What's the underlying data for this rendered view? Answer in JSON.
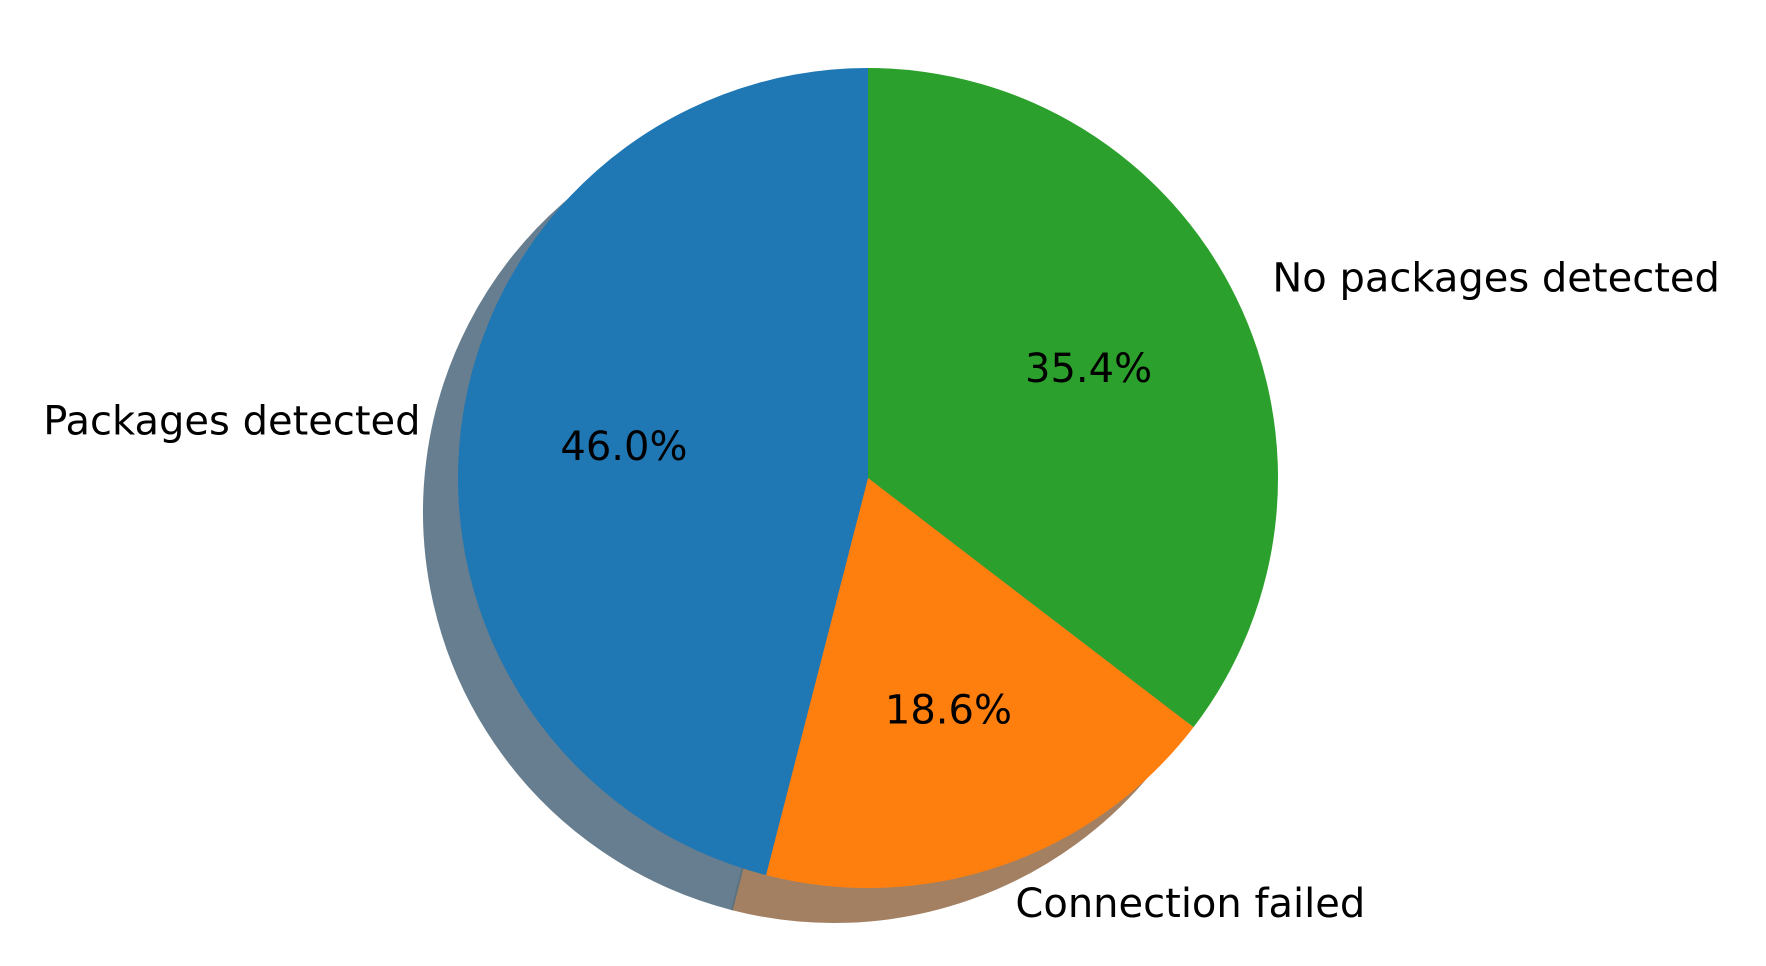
{
  "chart_data": {
    "type": "pie",
    "title": "",
    "shadow": true,
    "start_angle_deg": 90,
    "direction": "clockwise",
    "slices": [
      {
        "label": "No packages detected",
        "percent": 35.4,
        "pct_text": "35.4%",
        "color": "#2ca02c"
      },
      {
        "label": "Connection failed",
        "percent": 18.6,
        "pct_text": "18.6%",
        "color": "#ff7f0e"
      },
      {
        "label": "Packages detected",
        "percent": 46.0,
        "pct_text": "46.0%",
        "color": "#1f77b4"
      }
    ]
  }
}
